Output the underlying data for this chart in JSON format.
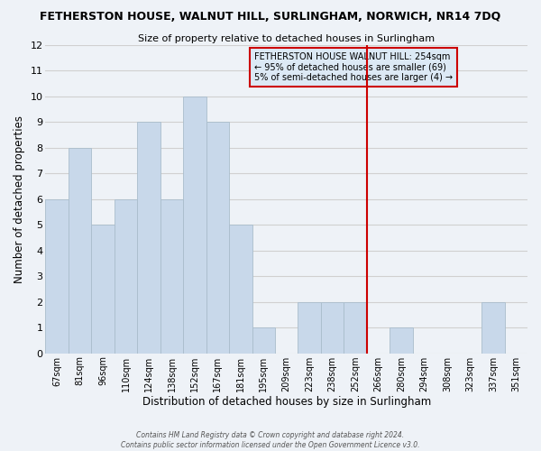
{
  "title": "FETHERSTON HOUSE, WALNUT HILL, SURLINGHAM, NORWICH, NR14 7DQ",
  "subtitle": "Size of property relative to detached houses in Surlingham",
  "xlabel": "Distribution of detached houses by size in Surlingham",
  "ylabel": "Number of detached properties",
  "bar_labels": [
    "67sqm",
    "81sqm",
    "96sqm",
    "110sqm",
    "124sqm",
    "138sqm",
    "152sqm",
    "167sqm",
    "181sqm",
    "195sqm",
    "209sqm",
    "223sqm",
    "238sqm",
    "252sqm",
    "266sqm",
    "280sqm",
    "294sqm",
    "308sqm",
    "323sqm",
    "337sqm",
    "351sqm"
  ],
  "bar_values": [
    6,
    8,
    5,
    6,
    9,
    6,
    10,
    9,
    5,
    1,
    0,
    2,
    2,
    2,
    0,
    1,
    0,
    0,
    0,
    2,
    0
  ],
  "bar_color": "#c8d8ea",
  "bar_edgecolor": "#aabdcc",
  "grid_color": "#d0d0d0",
  "vline_x_index": 13.5,
  "vline_color": "#cc0000",
  "annotation_text": "FETHERSTON HOUSE WALNUT HILL: 254sqm\n← 95% of detached houses are smaller (69)\n5% of semi-detached houses are larger (4) →",
  "annotation_box_facecolor": "#dce9f5",
  "annotation_box_edgecolor": "#cc0000",
  "ylim": [
    0,
    12
  ],
  "yticks": [
    0,
    1,
    2,
    3,
    4,
    5,
    6,
    7,
    8,
    9,
    10,
    11,
    12
  ],
  "footer1": "Contains HM Land Registry data © Crown copyright and database right 2024.",
  "footer2": "Contains public sector information licensed under the Open Government Licence v3.0.",
  "bg_color": "#eef2f7",
  "plot_bg_color": "#eef2f7"
}
